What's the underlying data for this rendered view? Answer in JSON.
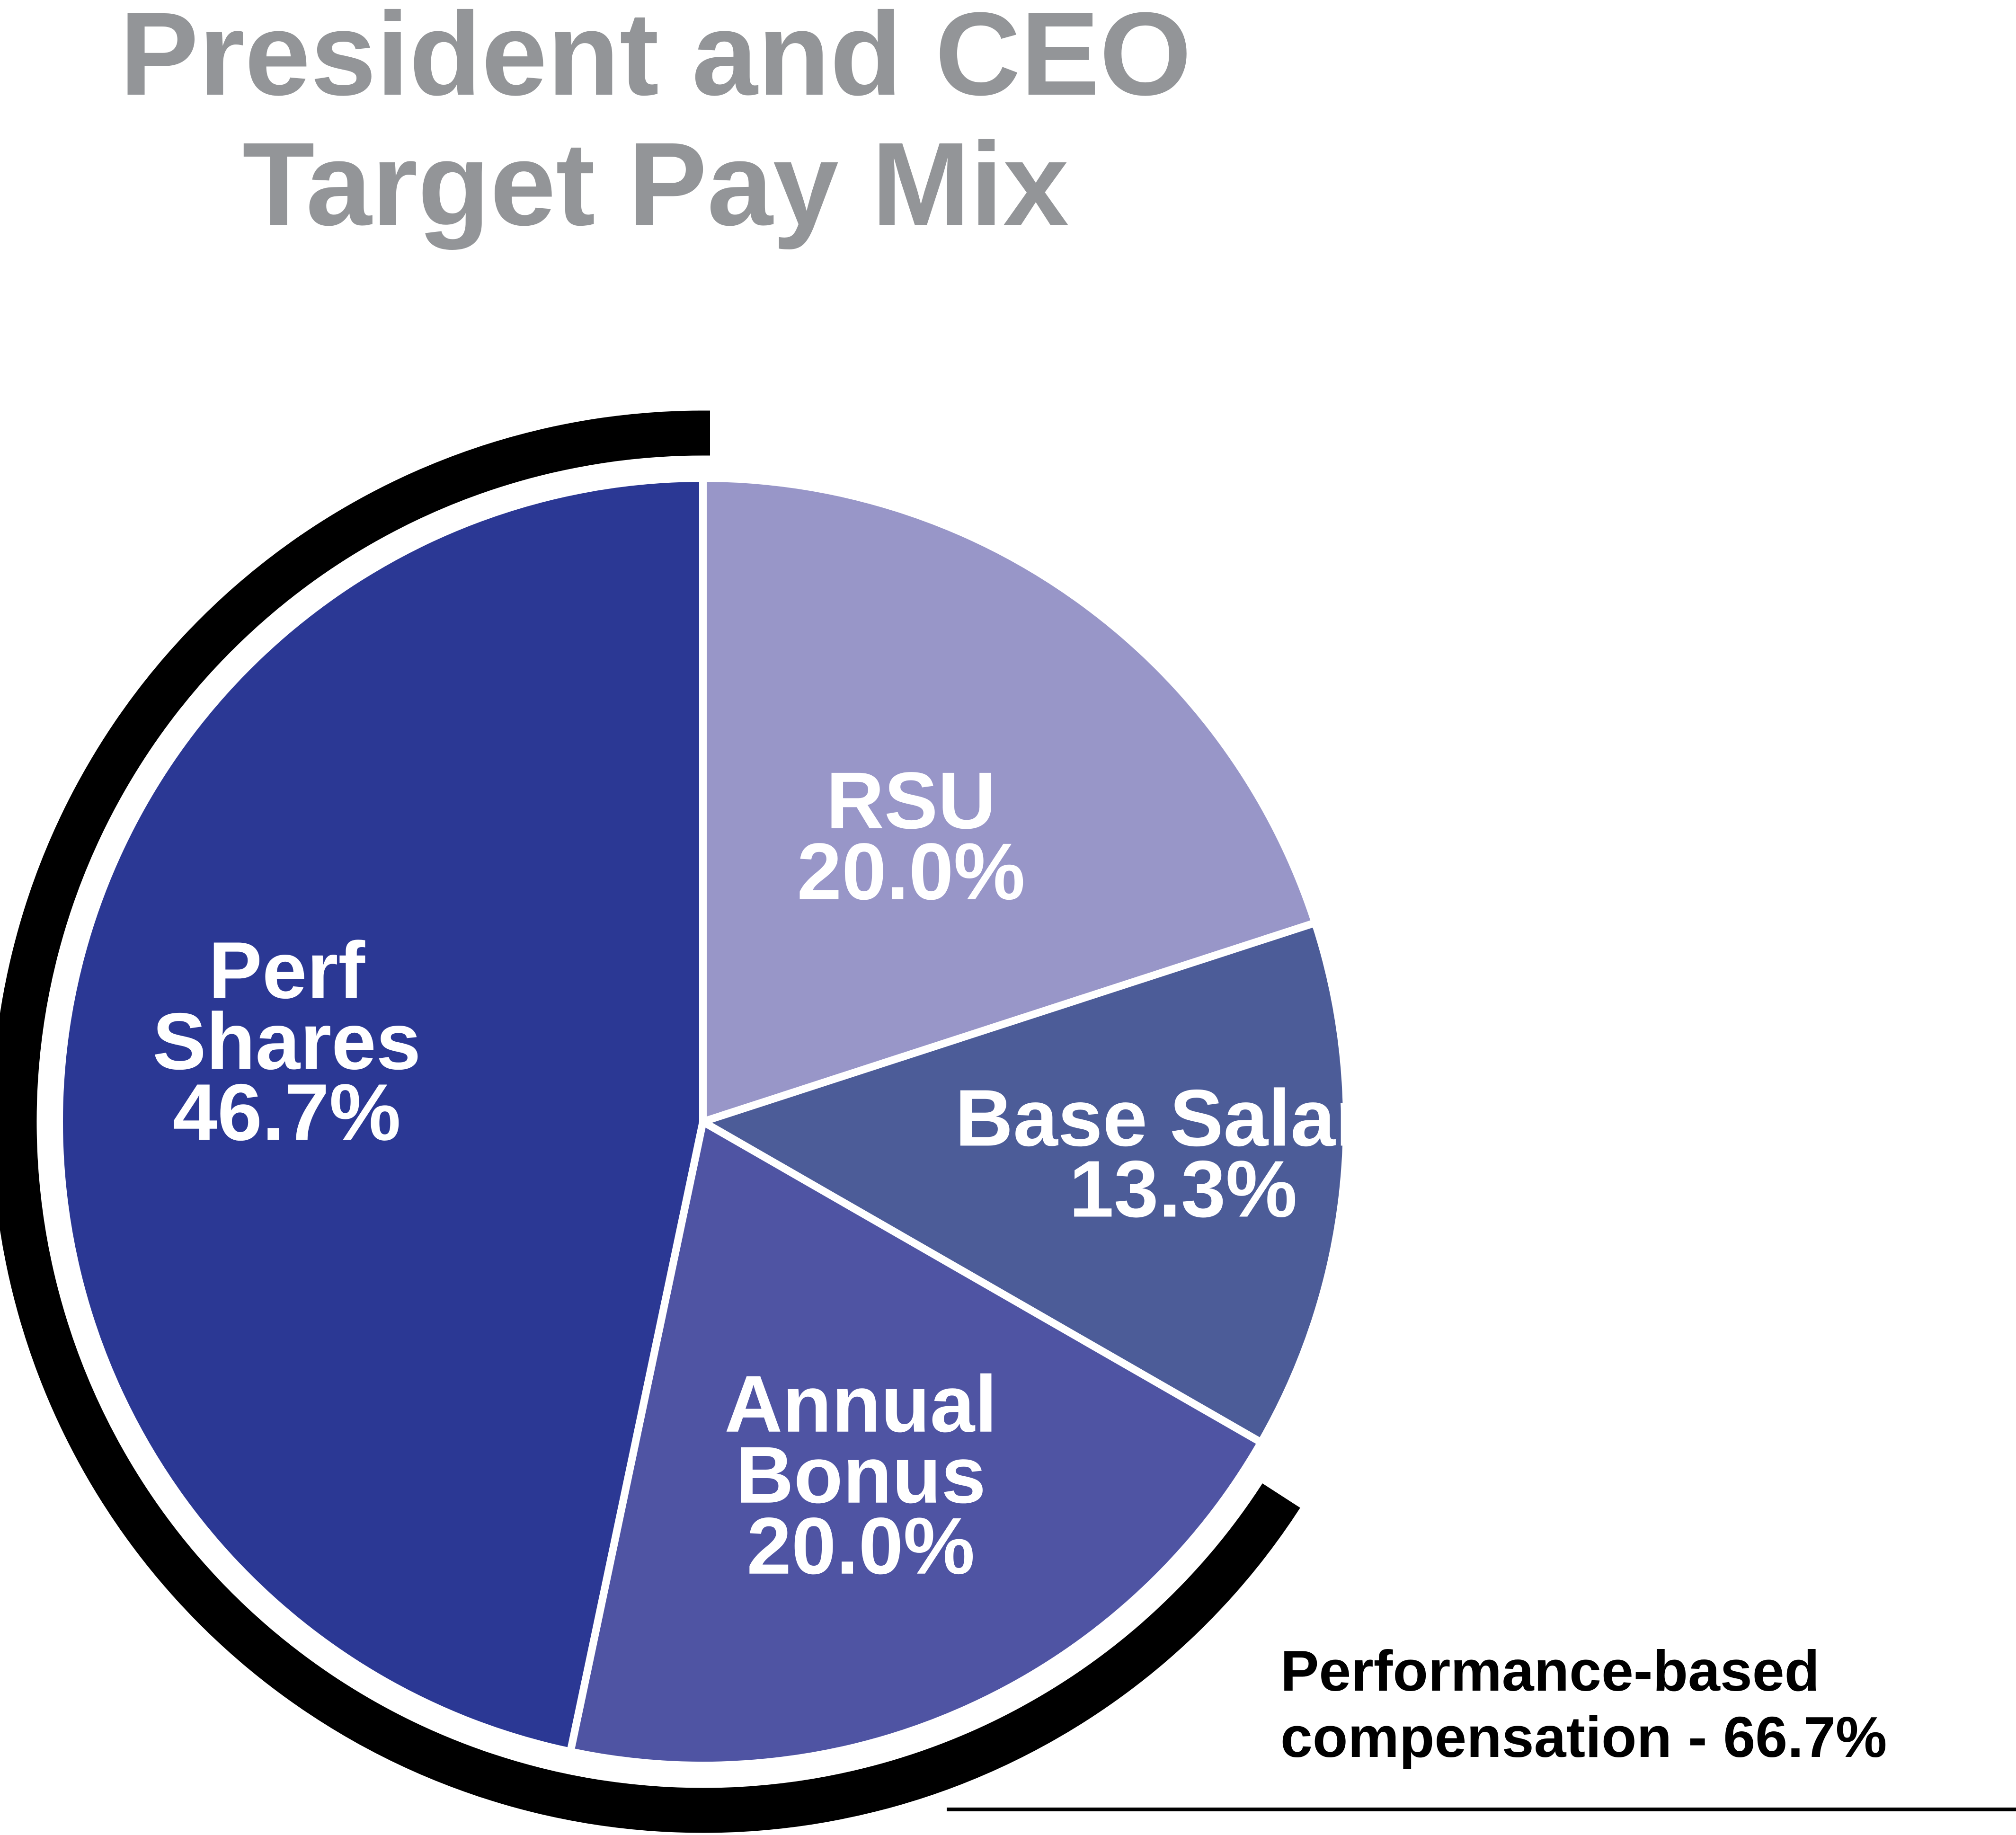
{
  "title": [
    "President and CEO",
    "Target Pay Mix"
  ],
  "chart_data": {
    "type": "pie",
    "title": "President and CEO Target Pay Mix",
    "slices": [
      {
        "name": "RSU",
        "label_lines": [
          "RSU"
        ],
        "value": 20.0,
        "value_label": "20.0%",
        "color": "#9896c8"
      },
      {
        "name": "Base Salary",
        "label_lines": [
          "Base Salary"
        ],
        "value": 13.3,
        "value_label": "13.3%",
        "color": "#4c5c98"
      },
      {
        "name": "Annual Bonus",
        "label_lines": [
          "Annual",
          "Bonus"
        ],
        "value": 20.0,
        "value_label": "20.0%",
        "color": "#4f54a3"
      },
      {
        "name": "Perf Shares",
        "label_lines": [
          "Perf",
          "Shares"
        ],
        "value": 46.7,
        "value_label": "46.7%",
        "color": "#2b3894"
      }
    ],
    "start": "12 o'clock",
    "direction": "clockwise",
    "bracket": {
      "label_lines": [
        "Performance-based",
        "compensation - 66.7%"
      ],
      "value": 66.7,
      "covers": [
        "Annual Bonus",
        "Perf Shares"
      ],
      "color": "#000000"
    }
  }
}
